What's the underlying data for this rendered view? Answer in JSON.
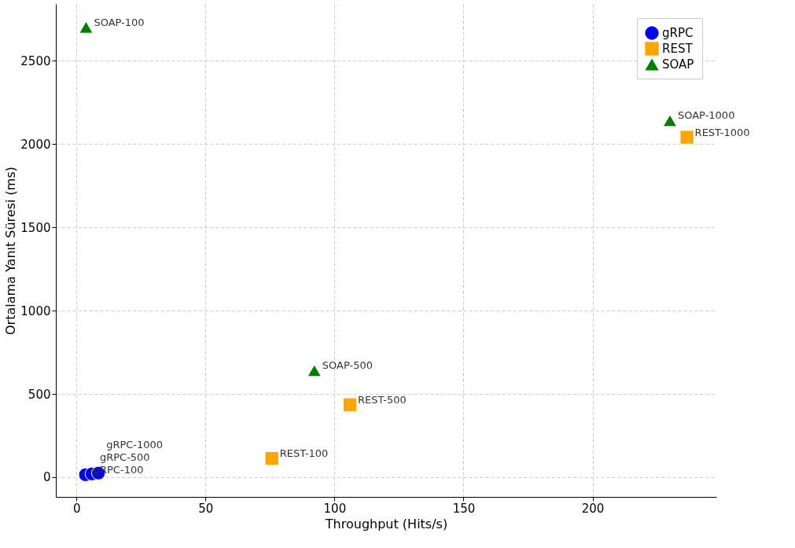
{
  "chart_data": {
    "type": "scatter",
    "xlabel": "Throughput (Hits/s)",
    "ylabel": "Ortalama Yanıt Süresi (ms)",
    "xlim": [
      -8,
      248
    ],
    "ylim": [
      -118,
      2840
    ],
    "xticks": [
      0,
      50,
      100,
      150,
      200
    ],
    "yticks": [
      0,
      500,
      1000,
      1500,
      2000,
      2500
    ],
    "grid": true,
    "legend": "top right",
    "series": [
      {
        "name": "gRPC",
        "color": "#0000ff",
        "marker": "circle",
        "x": [
          3.5,
          6,
          8.5
        ],
        "values": [
          15,
          20,
          25
        ]
      },
      {
        "name": "REST",
        "color": "#ffa500",
        "marker": "square",
        "x": [
          75.7,
          106,
          236.6
        ],
        "values": [
          113,
          435,
          2040
        ]
      },
      {
        "name": "SOAP",
        "color": "#008000",
        "marker": "triangle",
        "x": [
          3.7,
          92.2,
          230
        ],
        "values": [
          2700,
          640,
          2140
        ]
      }
    ],
    "annotations": [
      {
        "text": "gRPC-100",
        "x": 3.5,
        "y": 15
      },
      {
        "text": "gRPC-500",
        "x": 6,
        "y": 20
      },
      {
        "text": "gRPC-1000",
        "x": 8.5,
        "y": 25
      },
      {
        "text": "REST-100",
        "x": 75.7,
        "y": 113
      },
      {
        "text": "REST-500",
        "x": 106,
        "y": 435
      },
      {
        "text": "REST-1000",
        "x": 236.6,
        "y": 2040
      },
      {
        "text": "SOAP-100",
        "x": 3.7,
        "y": 2700
      },
      {
        "text": "SOAP-500",
        "x": 92.2,
        "y": 640
      },
      {
        "text": "SOAP-1000",
        "x": 230,
        "y": 2140
      }
    ]
  }
}
